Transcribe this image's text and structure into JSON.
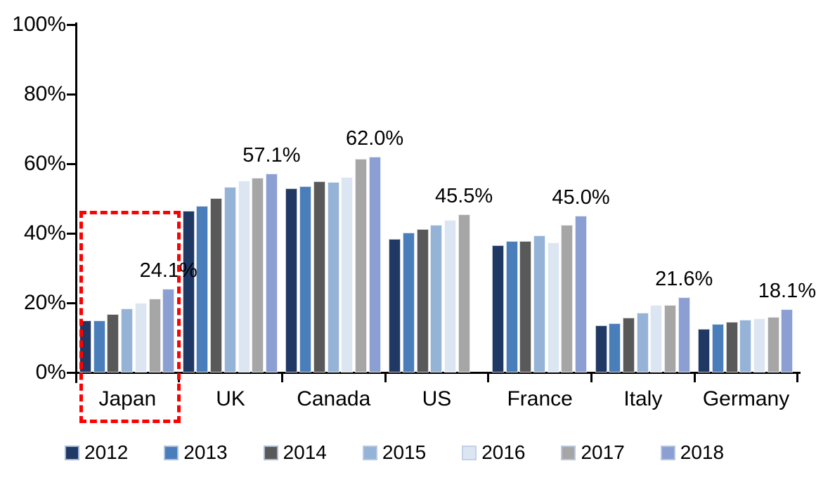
{
  "chart_data": {
    "type": "bar",
    "title": "",
    "xlabel": "",
    "ylabel": "",
    "unit": "%",
    "ylim": [
      0,
      100
    ],
    "grid": false,
    "legend_position": "bottom",
    "y_ticks": [
      "0%",
      "20%",
      "40%",
      "60%",
      "80%",
      "100%"
    ],
    "y_tick_values": [
      0,
      20,
      40,
      60,
      80,
      100
    ],
    "categories": [
      "Japan",
      "UK",
      "Canada",
      "US",
      "France",
      "Italy",
      "Germany"
    ],
    "series": [
      {
        "name": "2012",
        "color": "#1F3864",
        "values": [
          14.9,
          46.4,
          53.0,
          38.4,
          36.6,
          13.5,
          12.6
        ]
      },
      {
        "name": "2013",
        "color": "#4A7EBB",
        "values": [
          15.0,
          47.9,
          53.5,
          40.2,
          37.8,
          14.2,
          14.0
        ]
      },
      {
        "name": "2014",
        "color": "#595959",
        "values": [
          16.8,
          50.1,
          54.9,
          41.3,
          37.8,
          15.7,
          14.5
        ]
      },
      {
        "name": "2015",
        "color": "#95B3D7",
        "values": [
          18.4,
          53.4,
          54.8,
          42.4,
          39.4,
          17.2,
          15.2
        ]
      },
      {
        "name": "2016",
        "color": "#DCE6F2",
        "values": [
          20.0,
          55.1,
          56.2,
          43.8,
          37.3,
          19.3,
          15.6
        ]
      },
      {
        "name": "2017",
        "color": "#A6A6A6",
        "values": [
          21.2,
          55.9,
          61.5,
          45.5,
          42.5,
          19.4,
          16.0
        ]
      },
      {
        "name": "2018",
        "color": "#8C9FD3",
        "values": [
          24.1,
          57.1,
          62.0,
          null,
          45.0,
          21.6,
          18.1
        ]
      }
    ],
    "data_labels": [
      "24.1%",
      "57.1%",
      "62.0%",
      "45.5%",
      "45.0%",
      "21.6%",
      "18.1%"
    ],
    "annotations": {
      "highlight": {
        "category": "Japan",
        "style": "dashed-rectangle",
        "color": "#FE0000"
      }
    },
    "axis_color": "#000000",
    "background_color": "#FFFFFF"
  }
}
